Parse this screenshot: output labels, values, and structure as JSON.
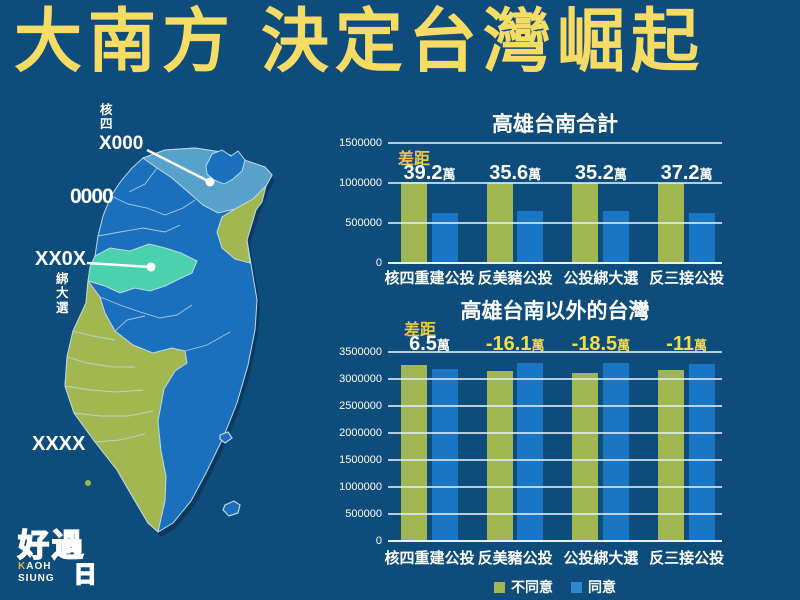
{
  "poster_title": "大南方 決定台灣崛起",
  "colors": {
    "background": "#0E4C7C",
    "title_yellow": "#F6DB64",
    "diff_yellow": "#EEC944",
    "grid_line": "#DDEBF5"
  },
  "map": {
    "callout_nuke": {
      "small": "核四",
      "big": "X000"
    },
    "label_0000": "0000",
    "callout_bind": {
      "big": "XX0X",
      "small": "綁大選"
    },
    "label_xxxx": "XXXX",
    "region_colors": {
      "agree_blue": "#1B70BE",
      "disagree_green": "#A3B751",
      "north_light_blue": "#57A2CB",
      "teal": "#4BD1AB",
      "border": "#BDD8E9"
    }
  },
  "logo": {
    "char_left": "好",
    "char_right": "過",
    "char_sun": "日",
    "kaoh_first": "K",
    "kaoh_rest": "AOH",
    "siung": "SIUNG"
  },
  "legend": [
    {
      "label": "不同意",
      "color": "#A0B751"
    },
    {
      "label": "同意",
      "color": "#2F87CE"
    }
  ],
  "chart_data": [
    {
      "type": "bar",
      "title": "高雄台南合計",
      "categories": [
        "核四重建公投",
        "反美豬公投",
        "公投綁大選",
        "反三接公投"
      ],
      "series": [
        {
          "name": "不同意",
          "color": "#A0B751",
          "values": [
            1012000,
            1000000,
            1000000,
            1000000
          ]
        },
        {
          "name": "同意",
          "color": "#1976C4",
          "values": [
            620000,
            644000,
            648000,
            628000
          ]
        }
      ],
      "diff_heading": "差距",
      "diffs": [
        {
          "value": "39.2",
          "suffix": "萬",
          "color": "#FFFFFF"
        },
        {
          "value": "35.6",
          "suffix": "萬",
          "color": "#FFFFFF"
        },
        {
          "value": "35.2",
          "suffix": "萬",
          "color": "#FFFFFF"
        },
        {
          "value": "37.2",
          "suffix": "萬",
          "color": "#FFFFFF"
        }
      ],
      "ylim": [
        0,
        1500000
      ],
      "yticks": [
        "1500000",
        "1000000",
        "500000",
        "0"
      ],
      "grid": true,
      "legend_position": "none"
    },
    {
      "type": "bar",
      "title": "高雄台南以外的台灣",
      "categories": [
        "核四重建公投",
        "反美豬公投",
        "公投綁大選",
        "反三接公投"
      ],
      "series": [
        {
          "name": "不同意",
          "color": "#A0B751",
          "values": [
            3250000,
            3140000,
            3120000,
            3160000
          ]
        },
        {
          "name": "同意",
          "color": "#1976C4",
          "values": [
            3185000,
            3301000,
            3305000,
            3270000
          ]
        }
      ],
      "diff_heading": "差距",
      "diffs": [
        {
          "value": "6.5",
          "suffix": "萬",
          "color": "#FFFFFF"
        },
        {
          "value": "-16.1",
          "suffix": "萬",
          "color": "#F2DD4E"
        },
        {
          "value": "-18.5",
          "suffix": "萬",
          "color": "#F2DD4E"
        },
        {
          "value": "-11",
          "suffix": "萬",
          "color": "#F2DD4E"
        }
      ],
      "ylim": [
        0,
        3500000
      ],
      "yticks": [
        "3500000",
        "3000000",
        "2500000",
        "2000000",
        "1500000",
        "1000000",
        "500000",
        "0"
      ],
      "grid": true,
      "legend_position": "bottom"
    }
  ]
}
